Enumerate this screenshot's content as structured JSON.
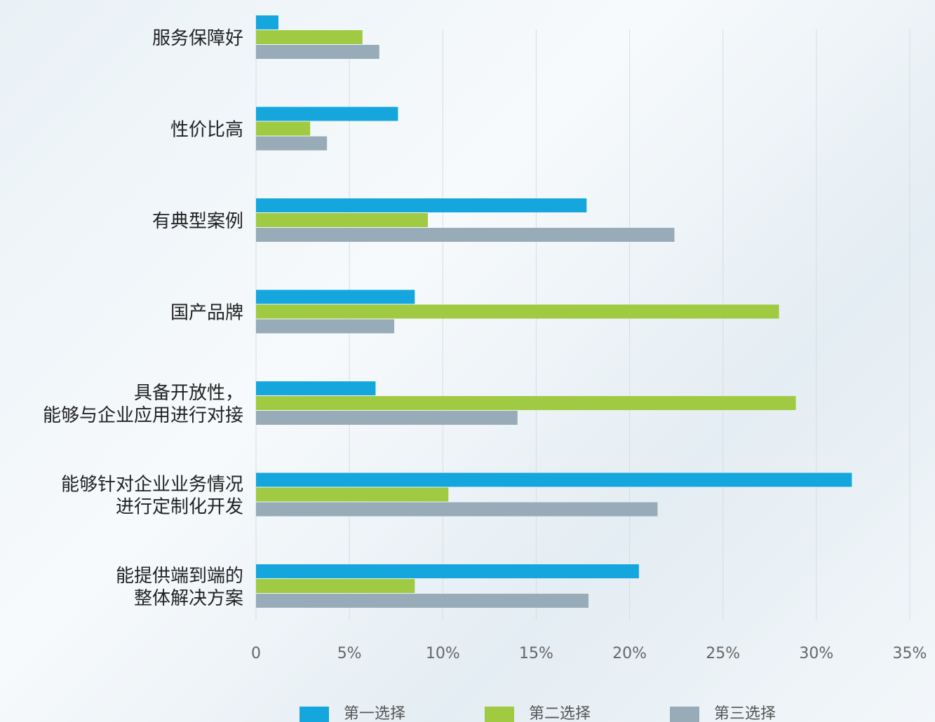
{
  "chart_data": {
    "type": "barh",
    "categories": [
      [
        "服务保障好"
      ],
      [
        "性价比高"
      ],
      [
        "有典型案例"
      ],
      [
        "国产品牌"
      ],
      [
        "具备开放性，",
        "能够与企业应用进行对接"
      ],
      [
        "能够针对企业业务情况",
        "进行定制化开发"
      ],
      [
        "能提供端到端的",
        "整体解决方案"
      ]
    ],
    "series": [
      {
        "name": "第一选择",
        "color": "#14a6dd",
        "values": [
          1.2,
          7.6,
          17.7,
          8.5,
          6.4,
          31.9,
          20.5
        ]
      },
      {
        "name": "第二选择",
        "color": "#9fca42",
        "values": [
          5.7,
          2.9,
          9.2,
          28.0,
          28.9,
          10.3,
          8.5
        ]
      },
      {
        "name": "第三选择",
        "color": "#98abb8",
        "values": [
          6.6,
          3.8,
          22.4,
          7.4,
          14.0,
          21.5,
          17.8
        ]
      }
    ],
    "xlim": [
      0,
      35
    ],
    "xticks": [
      0,
      {
        "value": 5,
        "label": "5%"
      },
      {
        "value": 10,
        "label": "10%"
      },
      {
        "value": 15,
        "label": "15%"
      },
      {
        "value": 20,
        "label": "20%"
      },
      {
        "value": 25,
        "label": "25%"
      },
      {
        "value": 30,
        "label": "30%"
      },
      {
        "value": 35,
        "label": "35%"
      }
    ],
    "grid": true
  }
}
